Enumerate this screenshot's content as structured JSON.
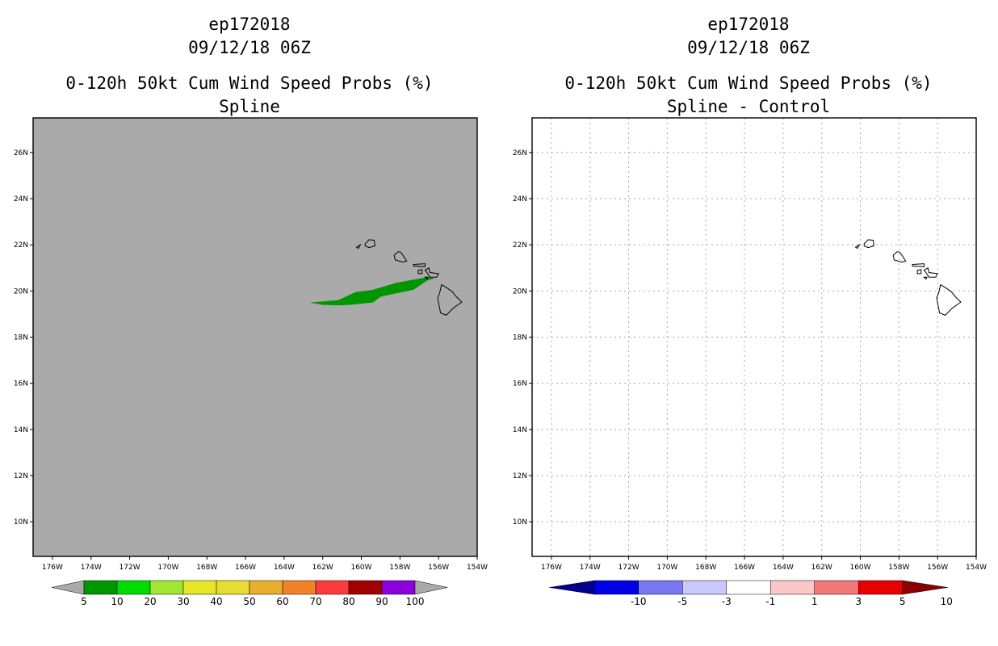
{
  "panels": [
    {
      "storm_id": "ep172018",
      "datetime": "09/12/18 06Z",
      "product": "0-120h 50kt Cum Wind Speed Probs (%)",
      "method": "Spline",
      "background": "#aaaaaa",
      "gridlines": false,
      "colorbar": {
        "labels": [
          "5",
          "10",
          "20",
          "30",
          "40",
          "50",
          "60",
          "70",
          "80",
          "90",
          "100"
        ],
        "colors": [
          "#009600",
          "#00dc00",
          "#a0e632",
          "#e6e628",
          "#e6dc32",
          "#e6af2d",
          "#f08228",
          "#fa3c3c",
          "#a00000",
          "#8c00dc"
        ],
        "end_colors": [
          "#aaaaaa",
          "#aaaaaa"
        ]
      },
      "contours": [
        {
          "value_range": "5-10%",
          "color": "#009600",
          "polygon_lonlat": [
            [
              -162.7,
              19.5
            ],
            [
              -161.2,
              19.6
            ],
            [
              -160.3,
              19.95
            ],
            [
              -159.4,
              20.05
            ],
            [
              -158.2,
              20.35
            ],
            [
              -156.6,
              20.6
            ],
            [
              -156.2,
              20.55
            ],
            [
              -156.6,
              20.45
            ],
            [
              -157.3,
              20.05
            ],
            [
              -158.2,
              19.9
            ],
            [
              -159.0,
              19.75
            ],
            [
              -159.4,
              19.5
            ],
            [
              -160.6,
              19.4
            ],
            [
              -161.2,
              19.38
            ],
            [
              -162.0,
              19.4
            ]
          ]
        }
      ]
    },
    {
      "storm_id": "ep172018",
      "datetime": "09/12/18 06Z",
      "product": "0-120h 50kt Cum Wind Speed Probs (%)",
      "method": "Spline - Control",
      "background": "#ffffff",
      "gridlines": true,
      "colorbar": {
        "labels": [
          "-10",
          "-5",
          "-3",
          "-1",
          "1",
          "3",
          "5",
          "10"
        ],
        "colors": [
          "#0000e6",
          "#7878f0",
          "#c8c8fa",
          "#ffffff",
          "#fac8c8",
          "#f07878",
          "#e60000"
        ],
        "end_colors": [
          "#00008c",
          "#8c0000"
        ]
      },
      "contours": []
    }
  ],
  "map": {
    "lon_range": [
      -177,
      -154
    ],
    "lat_range": [
      8.5,
      27.5
    ],
    "x_ticks": [
      {
        "lon": -176,
        "label": "176W"
      },
      {
        "lon": -174,
        "label": "174W"
      },
      {
        "lon": -172,
        "label": "172W"
      },
      {
        "lon": -170,
        "label": "170W"
      },
      {
        "lon": -168,
        "label": "168W"
      },
      {
        "lon": -166,
        "label": "166W"
      },
      {
        "lon": -164,
        "label": "164W"
      },
      {
        "lon": -162,
        "label": "162W"
      },
      {
        "lon": -160,
        "label": "160W"
      },
      {
        "lon": -158,
        "label": "158W"
      },
      {
        "lon": -156,
        "label": "156W"
      },
      {
        "lon": -154,
        "label": "154W"
      }
    ],
    "y_ticks": [
      {
        "lat": 10,
        "label": "10N"
      },
      {
        "lat": 12,
        "label": "12N"
      },
      {
        "lat": 14,
        "label": "14N"
      },
      {
        "lat": 16,
        "label": "16N"
      },
      {
        "lat": 18,
        "label": "18N"
      },
      {
        "lat": 20,
        "label": "20N"
      },
      {
        "lat": 22,
        "label": "22N"
      },
      {
        "lat": 24,
        "label": "24N"
      },
      {
        "lat": 26,
        "label": "26N"
      }
    ],
    "coastline": [
      {
        "name": "niihau",
        "points": [
          [
            -160.25,
            21.9
          ],
          [
            -160.05,
            22.0
          ],
          [
            -160.15,
            21.85
          ]
        ]
      },
      {
        "name": "kauai",
        "points": [
          [
            -159.8,
            22.05
          ],
          [
            -159.6,
            22.22
          ],
          [
            -159.33,
            22.2
          ],
          [
            -159.3,
            21.95
          ],
          [
            -159.6,
            21.88
          ],
          [
            -159.8,
            21.95
          ]
        ]
      },
      {
        "name": "oahu",
        "points": [
          [
            -158.3,
            21.55
          ],
          [
            -158.1,
            21.7
          ],
          [
            -157.95,
            21.68
          ],
          [
            -157.65,
            21.3
          ],
          [
            -157.85,
            21.25
          ],
          [
            -158.25,
            21.35
          ]
        ]
      },
      {
        "name": "molokai",
        "points": [
          [
            -157.3,
            21.15
          ],
          [
            -156.7,
            21.18
          ],
          [
            -156.7,
            21.05
          ],
          [
            -157.3,
            21.08
          ]
        ]
      },
      {
        "name": "lanai",
        "points": [
          [
            -157.05,
            20.9
          ],
          [
            -156.85,
            20.92
          ],
          [
            -156.85,
            20.75
          ],
          [
            -157.05,
            20.75
          ]
        ]
      },
      {
        "name": "maui",
        "points": [
          [
            -156.7,
            20.9
          ],
          [
            -156.5,
            21.0
          ],
          [
            -156.45,
            20.8
          ],
          [
            -156.0,
            20.75
          ],
          [
            -156.1,
            20.6
          ],
          [
            -156.45,
            20.6
          ],
          [
            -156.6,
            20.8
          ]
        ]
      },
      {
        "name": "kahoolawe",
        "points": [
          [
            -156.7,
            20.6
          ],
          [
            -156.55,
            20.6
          ],
          [
            -156.6,
            20.52
          ]
        ]
      },
      {
        "name": "big-island",
        "points": [
          [
            -155.85,
            20.27
          ],
          [
            -155.6,
            20.15
          ],
          [
            -155.3,
            19.98
          ],
          [
            -155.08,
            19.75
          ],
          [
            -154.8,
            19.52
          ],
          [
            -155.25,
            19.25
          ],
          [
            -155.6,
            18.95
          ],
          [
            -155.9,
            19.05
          ],
          [
            -156.05,
            19.7
          ],
          [
            -155.95,
            19.9
          ]
        ]
      }
    ]
  }
}
